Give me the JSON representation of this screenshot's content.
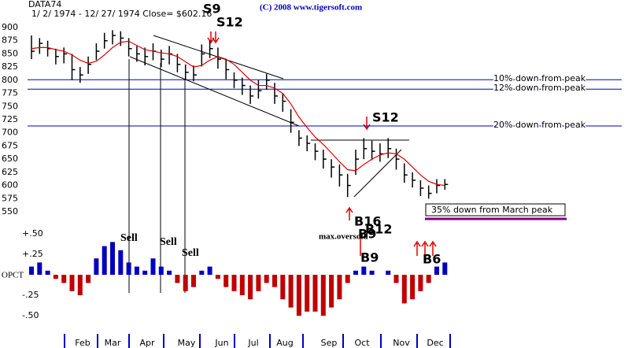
{
  "chart_data": [
    {
      "type": "ohlc",
      "title": "DATA74",
      "subtitle": "1/ 2/ 1974 -  12/ 27/ 1974    Close= $602.16",
      "copyright": "(C) 2008    www.tigersoft.com",
      "months": [
        "Feb",
        "Mar",
        "Apr",
        "May",
        "Jun",
        "Jul",
        "Aug",
        "Sep",
        "Oct",
        "Nov",
        "Dec"
      ],
      "high": [
        885,
        880,
        875,
        860,
        862,
        850,
        825,
        845,
        870,
        890,
        895,
        893,
        880,
        865,
        862,
        870,
        858,
        865,
        850,
        830,
        828,
        868,
        875,
        862,
        840,
        815,
        805,
        790,
        800,
        812,
        795,
        775,
        745,
        705,
        695,
        680,
        668,
        650,
        640,
        622,
        668,
        690,
        685,
        680,
        690,
        670,
        642,
        625,
        610,
        600,
        612,
        612
      ],
      "low": [
        840,
        850,
        845,
        830,
        832,
        800,
        795,
        812,
        838,
        860,
        868,
        865,
        845,
        835,
        828,
        838,
        825,
        830,
        815,
        800,
        798,
        826,
        842,
        822,
        802,
        785,
        772,
        755,
        765,
        782,
        755,
        740,
        700,
        675,
        665,
        648,
        632,
        615,
        598,
        578,
        620,
        650,
        648,
        645,
        652,
        630,
        605,
        596,
        580,
        575,
        585,
        592
      ],
      "close": [
        855,
        870,
        860,
        845,
        850,
        820,
        810,
        830,
        855,
        875,
        885,
        880,
        860,
        850,
        845,
        855,
        840,
        850,
        830,
        815,
        810,
        850,
        860,
        840,
        820,
        800,
        790,
        770,
        780,
        800,
        770,
        760,
        720,
        690,
        680,
        665,
        650,
        635,
        620,
        600,
        650,
        670,
        665,
        660,
        670,
        650,
        620,
        610,
        595,
        585,
        600,
        602
      ],
      "moving_average": [
        860,
        862,
        862,
        858,
        855,
        848,
        838,
        832,
        836,
        848,
        862,
        872,
        874,
        866,
        858,
        855,
        852,
        850,
        845,
        835,
        825,
        828,
        838,
        845,
        840,
        830,
        815,
        800,
        790,
        790,
        785,
        775,
        755,
        730,
        710,
        692,
        678,
        662,
        645,
        630,
        628,
        640,
        650,
        658,
        662,
        660,
        650,
        635,
        620,
        608,
        602,
        600
      ],
      "bar_color": "#000000",
      "ma_color": "#e00000",
      "level_color": "#0000c0",
      "ylim": [
        550,
        900
      ],
      "yticks": [
        900,
        875,
        850,
        825,
        800,
        775,
        750,
        725,
        700,
        675,
        650,
        625,
        600,
        575,
        550
      ],
      "levels": [
        {
          "value": 801,
          "label": "10% down from peak"
        },
        {
          "value": 783,
          "label": "12% down from peak"
        },
        {
          "value": 713,
          "label": "20% down from peak"
        }
      ],
      "notes": [
        "35% down from March peak"
      ],
      "signals": [
        "S9",
        "S12",
        "S12",
        "B16",
        "B12",
        "B9",
        "max.oversold",
        "B9",
        "B6",
        "Sell",
        "Sell",
        "Sell"
      ]
    },
    {
      "type": "bar",
      "ylabel": "OPCT",
      "values": [
        0.1,
        0.15,
        0.05,
        -0.05,
        -0.1,
        -0.2,
        -0.25,
        -0.1,
        0.2,
        0.35,
        0.4,
        0.3,
        0.15,
        0.1,
        0.05,
        0.2,
        0.1,
        0.05,
        -0.1,
        -0.2,
        -0.15,
        0.05,
        0.1,
        -0.05,
        -0.15,
        -0.2,
        -0.25,
        -0.3,
        -0.2,
        -0.1,
        -0.15,
        -0.3,
        -0.4,
        -0.5,
        -0.45,
        -0.45,
        -0.5,
        -0.4,
        -0.3,
        -0.1,
        0.05,
        0.1,
        0.05,
        0,
        0.05,
        -0.1,
        -0.35,
        -0.3,
        -0.2,
        -0.1,
        0.1,
        0.15
      ],
      "positive_color": "#0000c0",
      "negative_color": "#c00000",
      "ylim": [
        -0.55,
        0.55
      ],
      "yticks": [
        {
          "value": 0.5,
          "label": "+.50"
        },
        {
          "value": 0.25,
          "label": "+.25"
        },
        {
          "value": -0.25,
          "label": "-.25"
        },
        {
          "value": -0.5,
          "label": "-.50"
        }
      ]
    }
  ]
}
